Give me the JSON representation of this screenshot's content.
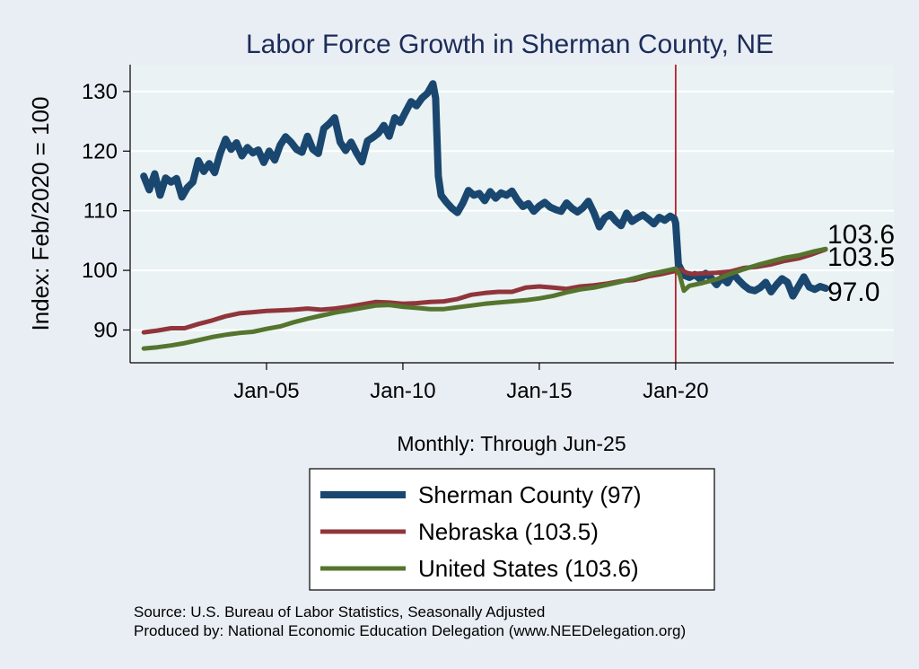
{
  "chart_data": {
    "type": "line",
    "title": "Labor Force Growth in Sherman  County, NE",
    "xlabel": "Monthly: Through Jun-25",
    "ylabel": "Index: Feb/2020 = 100",
    "xlim": [
      2000.0,
      2028.0
    ],
    "ylim": [
      84.5,
      134.5
    ],
    "yticks": [
      90,
      100,
      110,
      120,
      130
    ],
    "xticks": [
      {
        "value": 2005.0,
        "label": "Jan-05"
      },
      {
        "value": 2010.0,
        "label": "Jan-10"
      },
      {
        "value": 2015.0,
        "label": "Jan-15"
      },
      {
        "value": 2020.0,
        "label": "Jan-20"
      }
    ],
    "reference_line": {
      "x": 2020.0,
      "color": "#b5202e"
    },
    "series": [
      {
        "name": "Sherman  County (97)",
        "end_label": "97.0",
        "color": "#1a476f",
        "width": 8,
        "points": [
          [
            2000.5,
            115.8
          ],
          [
            2000.7,
            113.5
          ],
          [
            2000.9,
            116.2
          ],
          [
            2001.1,
            112.6
          ],
          [
            2001.3,
            115.5
          ],
          [
            2001.5,
            114.8
          ],
          [
            2001.7,
            115.4
          ],
          [
            2001.9,
            112.3
          ],
          [
            2002.1,
            113.9
          ],
          [
            2002.3,
            114.8
          ],
          [
            2002.5,
            118.4
          ],
          [
            2002.7,
            116.6
          ],
          [
            2002.9,
            117.9
          ],
          [
            2003.1,
            116.4
          ],
          [
            2003.3,
            119.6
          ],
          [
            2003.5,
            122.0
          ],
          [
            2003.7,
            120.3
          ],
          [
            2003.9,
            121.4
          ],
          [
            2004.1,
            119.2
          ],
          [
            2004.3,
            120.6
          ],
          [
            2004.5,
            119.7
          ],
          [
            2004.7,
            120.2
          ],
          [
            2004.9,
            118.1
          ],
          [
            2005.1,
            120.0
          ],
          [
            2005.3,
            118.5
          ],
          [
            2005.5,
            121.0
          ],
          [
            2005.7,
            122.4
          ],
          [
            2005.9,
            121.5
          ],
          [
            2006.1,
            120.3
          ],
          [
            2006.3,
            119.8
          ],
          [
            2006.5,
            122.5
          ],
          [
            2006.7,
            120.3
          ],
          [
            2006.9,
            119.6
          ],
          [
            2007.1,
            123.8
          ],
          [
            2007.3,
            124.6
          ],
          [
            2007.5,
            125.6
          ],
          [
            2007.7,
            121.5
          ],
          [
            2007.9,
            120.1
          ],
          [
            2008.1,
            121.5
          ],
          [
            2008.3,
            119.7
          ],
          [
            2008.5,
            118.2
          ],
          [
            2008.7,
            121.7
          ],
          [
            2008.9,
            122.3
          ],
          [
            2009.1,
            123.0
          ],
          [
            2009.3,
            124.3
          ],
          [
            2009.5,
            122.5
          ],
          [
            2009.7,
            125.6
          ],
          [
            2009.9,
            124.8
          ],
          [
            2010.1,
            126.6
          ],
          [
            2010.3,
            128.3
          ],
          [
            2010.5,
            127.6
          ],
          [
            2010.7,
            128.9
          ],
          [
            2010.9,
            129.7
          ],
          [
            2011.1,
            131.3
          ],
          [
            2011.2,
            128.9
          ],
          [
            2011.3,
            115.8
          ],
          [
            2011.4,
            112.6
          ],
          [
            2011.6,
            111.4
          ],
          [
            2011.8,
            110.4
          ],
          [
            2012.0,
            109.7
          ],
          [
            2012.2,
            111.3
          ],
          [
            2012.4,
            113.4
          ],
          [
            2012.6,
            112.6
          ],
          [
            2012.8,
            112.9
          ],
          [
            2013.0,
            111.7
          ],
          [
            2013.2,
            113.2
          ],
          [
            2013.4,
            112.1
          ],
          [
            2013.6,
            113.0
          ],
          [
            2013.8,
            112.6
          ],
          [
            2014.0,
            113.3
          ],
          [
            2014.2,
            111.8
          ],
          [
            2014.4,
            110.7
          ],
          [
            2014.6,
            111.2
          ],
          [
            2014.8,
            109.9
          ],
          [
            2015.0,
            110.8
          ],
          [
            2015.2,
            111.4
          ],
          [
            2015.4,
            110.6
          ],
          [
            2015.6,
            110.2
          ],
          [
            2015.8,
            109.9
          ],
          [
            2016.0,
            111.3
          ],
          [
            2016.2,
            110.4
          ],
          [
            2016.4,
            109.8
          ],
          [
            2016.6,
            110.5
          ],
          [
            2016.8,
            111.6
          ],
          [
            2017.0,
            109.7
          ],
          [
            2017.2,
            107.3
          ],
          [
            2017.4,
            108.8
          ],
          [
            2017.6,
            109.4
          ],
          [
            2017.8,
            108.3
          ],
          [
            2018.0,
            107.5
          ],
          [
            2018.2,
            109.6
          ],
          [
            2018.4,
            108.2
          ],
          [
            2018.6,
            108.8
          ],
          [
            2018.8,
            109.3
          ],
          [
            2019.0,
            108.6
          ],
          [
            2019.2,
            107.8
          ],
          [
            2019.4,
            108.9
          ],
          [
            2019.6,
            108.4
          ],
          [
            2019.8,
            109.1
          ],
          [
            2019.95,
            108.7
          ],
          [
            2020.0,
            107.9
          ],
          [
            2020.1,
            101.0
          ],
          [
            2020.3,
            99.2
          ],
          [
            2020.5,
            98.8
          ],
          [
            2020.7,
            99.3
          ],
          [
            2020.9,
            98.5
          ],
          [
            2021.1,
            99.5
          ],
          [
            2021.3,
            98.7
          ],
          [
            2021.5,
            97.6
          ],
          [
            2021.7,
            98.8
          ],
          [
            2021.9,
            97.9
          ],
          [
            2022.1,
            99.5
          ],
          [
            2022.3,
            98.4
          ],
          [
            2022.5,
            97.5
          ],
          [
            2022.7,
            96.8
          ],
          [
            2022.9,
            96.6
          ],
          [
            2023.1,
            97.1
          ],
          [
            2023.3,
            98.0
          ],
          [
            2023.5,
            96.4
          ],
          [
            2023.7,
            97.6
          ],
          [
            2023.9,
            98.6
          ],
          [
            2024.1,
            98.0
          ],
          [
            2024.3,
            95.7
          ],
          [
            2024.5,
            97.3
          ],
          [
            2024.7,
            98.9
          ],
          [
            2024.9,
            97.2
          ],
          [
            2025.1,
            96.8
          ],
          [
            2025.3,
            97.3
          ],
          [
            2025.5,
            97.0
          ]
        ]
      },
      {
        "name": "Nebraska (103.5)",
        "end_label": "103.5",
        "color": "#90353b",
        "width": 5,
        "points": [
          [
            2000.5,
            89.6
          ],
          [
            2001.0,
            89.9
          ],
          [
            2001.5,
            90.3
          ],
          [
            2002.0,
            90.3
          ],
          [
            2002.5,
            91.0
          ],
          [
            2003.0,
            91.6
          ],
          [
            2003.5,
            92.3
          ],
          [
            2004.0,
            92.8
          ],
          [
            2004.5,
            93.0
          ],
          [
            2005.0,
            93.2
          ],
          [
            2005.5,
            93.3
          ],
          [
            2006.0,
            93.4
          ],
          [
            2006.5,
            93.6
          ],
          [
            2007.0,
            93.4
          ],
          [
            2007.5,
            93.6
          ],
          [
            2008.0,
            93.9
          ],
          [
            2008.5,
            94.3
          ],
          [
            2009.0,
            94.7
          ],
          [
            2009.5,
            94.6
          ],
          [
            2010.0,
            94.4
          ],
          [
            2010.5,
            94.5
          ],
          [
            2011.0,
            94.7
          ],
          [
            2011.5,
            94.8
          ],
          [
            2012.0,
            95.2
          ],
          [
            2012.5,
            95.9
          ],
          [
            2013.0,
            96.2
          ],
          [
            2013.5,
            96.4
          ],
          [
            2014.0,
            96.4
          ],
          [
            2014.5,
            97.1
          ],
          [
            2015.0,
            97.3
          ],
          [
            2015.5,
            97.1
          ],
          [
            2016.0,
            96.9
          ],
          [
            2016.5,
            97.3
          ],
          [
            2017.0,
            97.5
          ],
          [
            2017.5,
            97.8
          ],
          [
            2018.0,
            98.2
          ],
          [
            2018.5,
            98.4
          ],
          [
            2019.0,
            99.0
          ],
          [
            2019.5,
            99.4
          ],
          [
            2020.0,
            99.9
          ],
          [
            2020.2,
            100.1
          ],
          [
            2020.4,
            99.6
          ],
          [
            2020.6,
            99.4
          ],
          [
            2021.0,
            99.5
          ],
          [
            2021.5,
            99.6
          ],
          [
            2022.0,
            99.8
          ],
          [
            2022.5,
            100.4
          ],
          [
            2023.0,
            100.6
          ],
          [
            2023.5,
            101.0
          ],
          [
            2024.0,
            101.6
          ],
          [
            2024.5,
            102.0
          ],
          [
            2025.0,
            102.7
          ],
          [
            2025.5,
            103.5
          ]
        ]
      },
      {
        "name": "United States (103.6)",
        "end_label": "103.6",
        "color": "#55752f",
        "width": 5,
        "points": [
          [
            2000.5,
            86.9
          ],
          [
            2001.0,
            87.1
          ],
          [
            2001.5,
            87.4
          ],
          [
            2002.0,
            87.8
          ],
          [
            2002.5,
            88.3
          ],
          [
            2003.0,
            88.8
          ],
          [
            2003.5,
            89.2
          ],
          [
            2004.0,
            89.5
          ],
          [
            2004.5,
            89.7
          ],
          [
            2005.0,
            90.2
          ],
          [
            2005.5,
            90.6
          ],
          [
            2006.0,
            91.3
          ],
          [
            2006.5,
            91.9
          ],
          [
            2007.0,
            92.4
          ],
          [
            2007.5,
            92.9
          ],
          [
            2008.0,
            93.3
          ],
          [
            2008.5,
            93.7
          ],
          [
            2009.0,
            94.1
          ],
          [
            2009.5,
            94.2
          ],
          [
            2010.0,
            93.9
          ],
          [
            2010.5,
            93.7
          ],
          [
            2011.0,
            93.5
          ],
          [
            2011.5,
            93.5
          ],
          [
            2012.0,
            93.8
          ],
          [
            2012.5,
            94.1
          ],
          [
            2013.0,
            94.4
          ],
          [
            2013.5,
            94.6
          ],
          [
            2014.0,
            94.8
          ],
          [
            2014.5,
            95.0
          ],
          [
            2015.0,
            95.3
          ],
          [
            2015.5,
            95.7
          ],
          [
            2016.0,
            96.3
          ],
          [
            2016.5,
            96.8
          ],
          [
            2017.0,
            97.1
          ],
          [
            2017.5,
            97.6
          ],
          [
            2018.0,
            98.1
          ],
          [
            2018.5,
            98.7
          ],
          [
            2019.0,
            99.3
          ],
          [
            2019.5,
            99.8
          ],
          [
            2020.0,
            100.3
          ],
          [
            2020.15,
            99.2
          ],
          [
            2020.3,
            96.6
          ],
          [
            2020.5,
            97.4
          ],
          [
            2021.0,
            97.9
          ],
          [
            2021.5,
            98.5
          ],
          [
            2022.0,
            99.4
          ],
          [
            2022.5,
            100.2
          ],
          [
            2023.0,
            100.9
          ],
          [
            2023.5,
            101.5
          ],
          [
            2024.0,
            102.1
          ],
          [
            2024.5,
            102.5
          ],
          [
            2025.0,
            103.1
          ],
          [
            2025.5,
            103.6
          ]
        ]
      }
    ]
  },
  "footer": {
    "source": "Source: U.S. Bureau of Labor Statistics, Seasonally Adjusted",
    "produced_by": "Produced by: National Economic Education Delegation (www.NEEDelegation.org)"
  }
}
